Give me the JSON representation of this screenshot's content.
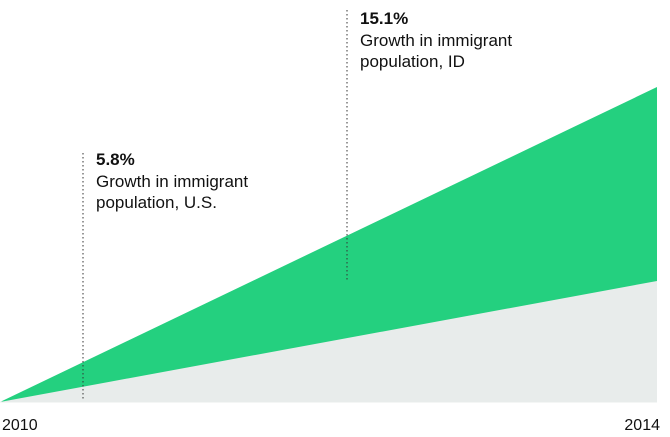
{
  "chart_data": {
    "type": "area",
    "x": [
      "2010",
      "2014"
    ],
    "x_ticks": [
      "2010",
      "2014"
    ],
    "series": [
      {
        "key": "id",
        "values": [
          0,
          15.1
        ],
        "color": "#24d07f"
      },
      {
        "key": "us",
        "values": [
          0,
          5.8
        ],
        "color": "#e8eceb"
      }
    ],
    "ylim": [
      0,
      15.1
    ],
    "grid": false,
    "legend": "none",
    "annotations": [
      {
        "key": "us",
        "value": "5.8%",
        "label_line1": "Growth in immigrant",
        "label_line2": "population, U.S."
      },
      {
        "key": "id",
        "value": "15.1%",
        "label_line1": "Growth in immigrant",
        "label_line2": "population, ID"
      }
    ]
  }
}
